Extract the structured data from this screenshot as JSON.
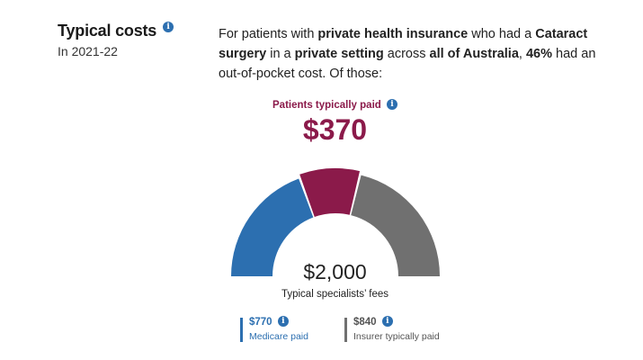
{
  "header": {
    "title": "Typical costs",
    "year": "In 2021-22",
    "info_glyph": "i"
  },
  "intro": {
    "t1": "For patients with ",
    "b1": "private health insurance",
    "t2": " who had a ",
    "b2": "Cataract surgery",
    "t3": " in a ",
    "b3": "private setting",
    "t4": " across ",
    "b4": "all of Australia",
    "t5": ", ",
    "b5": "46%",
    "t6": " had an out-of-pocket cost. Of those:"
  },
  "gauge": {
    "patients_paid_label": "Patients typically paid",
    "patients_paid_amount": "$370",
    "total_amount": "$2,000",
    "total_label": "Typical specialists’ fees",
    "segments": [
      {
        "key": "medicare",
        "value": 770,
        "color": "#2c6fb0"
      },
      {
        "key": "patient",
        "value": 370,
        "color": "#8b1a4a"
      },
      {
        "key": "insurer",
        "value": 840,
        "color": "#707070"
      }
    ],
    "icons": [
      "info-icon"
    ]
  },
  "legend": {
    "medicare": {
      "amount": "$770",
      "label": "Medicare paid",
      "color": "#2c6fb0"
    },
    "insurer": {
      "amount": "$840",
      "label": "Insurer typically paid",
      "color": "#707070"
    }
  }
}
